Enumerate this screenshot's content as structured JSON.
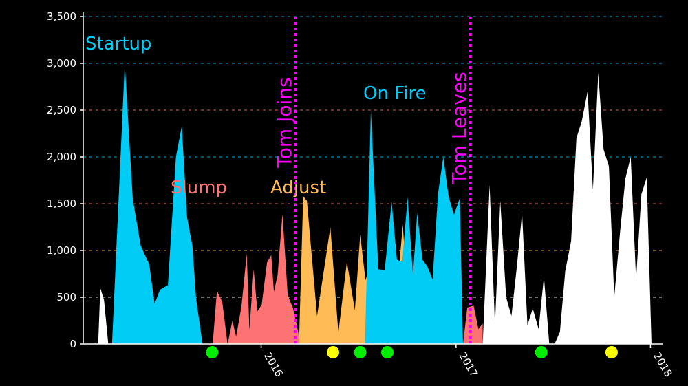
{
  "chart_data": {
    "type": "area",
    "title": "",
    "xlabel": "",
    "ylabel": "",
    "ylim": [
      0,
      3500
    ],
    "xlim": [
      "2015-02-01",
      "2018-01-25"
    ],
    "yticks": [
      0,
      500,
      1000,
      1500,
      2000,
      2500,
      3000,
      3500
    ],
    "ytick_labels": [
      "0",
      "500",
      "1,000",
      "1,500",
      "2,000",
      "2,500",
      "3,000",
      "3,500"
    ],
    "xticks": [
      "2016-01-01",
      "2017-01-01",
      "2018-01-01"
    ],
    "xtick_labels": [
      "2016",
      "2017",
      "2018"
    ],
    "grid": true,
    "series": [
      {
        "phase": "pre",
        "color": "#ffffff",
        "x": [
          "2015-03-01",
          "2015-03-05",
          "2015-03-12",
          "2015-03-20",
          "2015-03-25"
        ],
        "y": [
          0,
          600,
          470,
          0,
          0
        ]
      },
      {
        "name": "Startup",
        "phase": "startup",
        "color": "#00ccf5",
        "x": [
          "2015-03-27",
          "2015-04-20",
          "2015-05-05",
          "2015-05-20",
          "2015-06-05",
          "2015-06-15",
          "2015-06-25",
          "2015-07-10",
          "2015-07-25",
          "2015-08-05",
          "2015-08-15",
          "2015-08-25",
          "2015-09-01",
          "2015-09-13"
        ],
        "y": [
          0,
          3000,
          1550,
          1050,
          850,
          430,
          580,
          630,
          2000,
          2330,
          1350,
          1050,
          480,
          0
        ]
      },
      {
        "name": "Slump",
        "phase": "slump",
        "color": "#fd7272",
        "x": [
          "2015-10-02",
          "2015-10-10",
          "2015-10-20",
          "2015-10-30",
          "2015-11-08",
          "2015-11-15",
          "2015-11-25",
          "2015-12-05",
          "2015-12-10",
          "2015-12-18",
          "2015-12-25",
          "2016-01-02",
          "2016-01-12",
          "2016-01-20",
          "2016-01-25",
          "2016-02-01",
          "2016-02-10",
          "2016-02-20",
          "2016-03-01",
          "2016-03-08",
          "2016-03-15",
          "2016-03-24",
          "2016-03-29",
          "2016-04-06",
          "2016-04-14",
          "2016-04-18"
        ],
        "y": [
          0,
          570,
          450,
          0,
          250,
          80,
          400,
          970,
          150,
          800,
          350,
          420,
          870,
          950,
          560,
          740,
          1390,
          520,
          380,
          200,
          0,
          0,
          0,
          0,
          0,
          0
        ]
      },
      {
        "name": "Adjust",
        "phase": "adjust",
        "color": "#ffbb55",
        "x": [
          "2016-03-12",
          "2016-03-20",
          "2016-03-27",
          "2016-04-15",
          "2016-05-10",
          "2016-05-25",
          "2016-06-10",
          "2016-06-25",
          "2016-07-05",
          "2016-07-15",
          "2016-07-25",
          "2016-08-02",
          "2016-08-15",
          "2016-08-27",
          "2016-09-08",
          "2016-09-23",
          "2016-10-01",
          "2016-10-08",
          "2016-10-15",
          "2016-10-25",
          "2016-11-02",
          "2016-11-10"
        ],
        "y": [
          0,
          1580,
          1530,
          300,
          1250,
          120,
          880,
          360,
          1170,
          680,
          880,
          270,
          0,
          0,
          280,
          1280,
          560,
          480,
          900,
          560,
          0,
          0
        ]
      },
      {
        "name": "On Fire",
        "phase": "onfire",
        "color": "#00ccf5",
        "x": [
          "2016-07-14",
          "2016-07-25",
          "2016-08-08",
          "2016-08-20",
          "2016-09-02",
          "2016-09-12",
          "2016-09-22",
          "2016-10-02",
          "2016-10-12",
          "2016-10-20",
          "2016-10-30",
          "2016-11-08",
          "2016-11-18",
          "2016-11-28",
          "2016-12-08",
          "2016-12-18",
          "2016-12-28",
          "2017-01-08",
          "2017-01-14"
        ],
        "y": [
          0,
          2500,
          800,
          790,
          1520,
          900,
          880,
          1570,
          740,
          1400,
          900,
          830,
          690,
          1600,
          2000,
          1580,
          1380,
          1560,
          0
        ]
      },
      {
        "phase": "transition",
        "color": "#fd7272",
        "x": [
          "2017-01-14",
          "2017-01-22",
          "2017-02-03",
          "2017-02-12",
          "2017-02-20"
        ],
        "y": [
          0,
          390,
          410,
          160,
          220
        ]
      },
      {
        "phase": "post",
        "color": "#ffffff",
        "x": [
          "2017-02-20",
          "2017-03-05",
          "2017-03-15",
          "2017-03-25",
          "2017-04-05",
          "2017-04-15",
          "2017-04-25",
          "2017-05-05",
          "2017-05-15",
          "2017-05-25",
          "2017-06-05",
          "2017-06-15",
          "2017-06-25",
          "2017-07-05",
          "2017-07-15",
          "2017-07-25",
          "2017-08-05",
          "2017-08-15",
          "2017-08-25",
          "2017-09-05",
          "2017-09-15",
          "2017-09-25",
          "2017-10-05",
          "2017-10-15",
          "2017-10-25",
          "2017-11-05",
          "2017-11-15",
          "2017-11-25",
          "2017-12-05",
          "2017-12-15",
          "2017-12-25",
          "2018-01-03",
          "2018-01-10",
          "2018-01-12"
        ],
        "y": [
          0,
          1700,
          200,
          1530,
          500,
          300,
          820,
          1400,
          200,
          380,
          160,
          720,
          0,
          0,
          130,
          780,
          1100,
          2200,
          2380,
          2700,
          1650,
          2900,
          2080,
          1900,
          500,
          1200,
          1770,
          2000,
          690,
          1600,
          1780,
          0,
          0,
          0
        ]
      }
    ],
    "phase_labels": [
      {
        "text": "Startup",
        "color": "#00ccf5"
      },
      {
        "text": "Slump",
        "color": "#fd7272"
      },
      {
        "text": "Adjust",
        "color": "#ffbb55"
      },
      {
        "text": "On Fire",
        "color": "#00ccf5"
      }
    ],
    "events": [
      {
        "date": "2016-03-06",
        "label": "Tom Joins",
        "color": "#ff00ff"
      },
      {
        "date": "2017-01-28",
        "label": "Tom Leaves",
        "color": "#ff00ff"
      }
    ],
    "markers": [
      {
        "date": "2015-10-01",
        "color": "#00ee00"
      },
      {
        "date": "2016-05-15",
        "color": "#ffff00"
      },
      {
        "date": "2016-07-05",
        "color": "#00ee00"
      },
      {
        "date": "2016-08-25",
        "color": "#00ee00"
      },
      {
        "date": "2017-06-10",
        "color": "#00ee00"
      },
      {
        "date": "2017-10-20",
        "color": "#ffff00"
      }
    ],
    "grid_line_colors": [
      "#ffffff",
      "#ffbb55",
      "#fd7272",
      "#00ccf5",
      "#fd7272",
      "#00ccf5",
      "#00ccf5"
    ]
  }
}
